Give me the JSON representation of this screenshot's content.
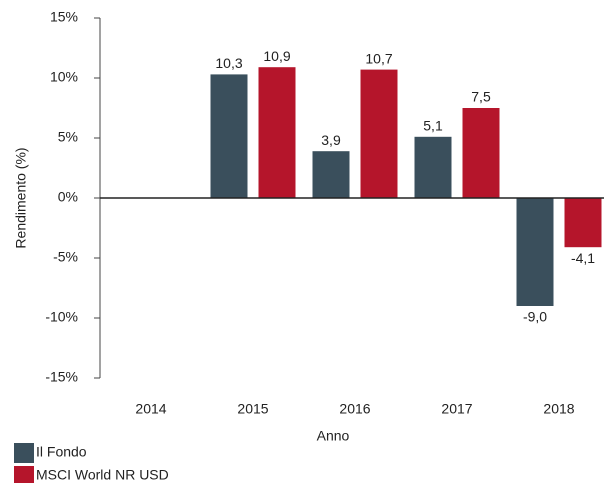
{
  "chart_data": {
    "type": "bar",
    "categories": [
      "2014",
      "2015",
      "2016",
      "2017",
      "2018"
    ],
    "series": [
      {
        "name": "Il Fondo",
        "color": "#3a4f5c",
        "values": [
          null,
          10.3,
          3.9,
          5.1,
          -9.0
        ],
        "value_labels": [
          null,
          "10,3",
          "3,9",
          "5,1",
          "-9,0"
        ]
      },
      {
        "name": "MSCI World NR USD",
        "color": "#b5152b",
        "values": [
          null,
          10.9,
          10.7,
          7.5,
          -4.1
        ],
        "value_labels": [
          null,
          "10,9",
          "10,7",
          "7,5",
          "-4,1"
        ]
      }
    ],
    "ylim": [
      -15,
      15
    ],
    "yticks": [
      {
        "value": -15,
        "label": "-15%"
      },
      {
        "value": -10,
        "label": "-10%"
      },
      {
        "value": -5,
        "label": "-5%"
      },
      {
        "value": 0,
        "label": "0%"
      },
      {
        "value": 5,
        "label": "5%"
      },
      {
        "value": 10,
        "label": "10%"
      },
      {
        "value": 15,
        "label": "15%"
      }
    ],
    "y_label": "Rendimento (%)",
    "x_label": "Anno",
    "legend": "bottom-left"
  }
}
